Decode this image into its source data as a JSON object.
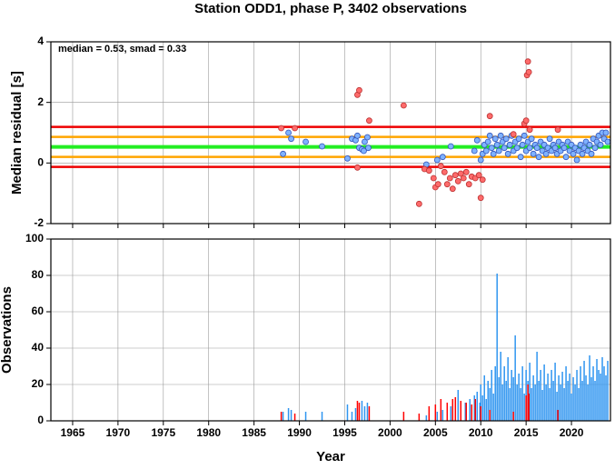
{
  "chart_data": [
    {
      "type": "scatter",
      "title": "Station ODD1, phase P, 3402 observations",
      "ylabel": "Median residual [s]",
      "annotation": "median = 0.53, smad = 0.33",
      "xlim": [
        1962.6,
        2024.3
      ],
      "xticks": [
        1965,
        1970,
        1975,
        1980,
        1985,
        1990,
        1995,
        2000,
        2005,
        2010,
        2015,
        2020
      ],
      "ylim": [
        -2,
        4
      ],
      "yticks": [
        -2,
        0,
        2,
        4
      ],
      "grid": true,
      "reference_lines": [
        {
          "value": 1.19,
          "color": "#ee0000"
        },
        {
          "value": -0.13,
          "color": "#ee0000"
        },
        {
          "value": 0.86,
          "color": "#ffa500"
        },
        {
          "value": 0.2,
          "color": "#ffa500"
        },
        {
          "value": 0.53,
          "color": "#22ee22"
        }
      ],
      "series": [
        {
          "color": "#7fb2ff",
          "edge": "#3355bb",
          "x": [
            1988.2,
            1988.8,
            1989.1,
            1990.7,
            1992.5,
            1995.3,
            1995.8,
            1996.2,
            1996.4,
            1996.6,
            1996.9,
            1997.2,
            1997.5,
            1997.1,
            1997.6,
            2004.0,
            2005.2,
            2005.8,
            2006.7,
            2009.3,
            2009.6,
            2010.0,
            2010.2,
            2010.4,
            2010.6,
            2010.8,
            2011.0,
            2011.2,
            2011.4,
            2011.6,
            2011.8,
            2012.0,
            2012.2,
            2012.4,
            2012.6,
            2012.8,
            2013.0,
            2013.2,
            2013.4,
            2013.6,
            2013.8,
            2014.0,
            2014.2,
            2014.4,
            2014.6,
            2014.8,
            2015.0,
            2015.2,
            2015.4,
            2015.6,
            2015.8,
            2016.0,
            2016.2,
            2016.4,
            2016.6,
            2016.8,
            2017.0,
            2017.2,
            2017.4,
            2017.6,
            2017.8,
            2018.0,
            2018.2,
            2018.4,
            2018.6,
            2018.8,
            2019.0,
            2019.2,
            2019.4,
            2019.6,
            2019.8,
            2020.0,
            2020.2,
            2020.4,
            2020.6,
            2020.8,
            2021.0,
            2021.2,
            2021.4,
            2021.6,
            2021.8,
            2022.0,
            2022.2,
            2022.4,
            2022.6,
            2022.8,
            2023.0,
            2023.2,
            2023.4,
            2023.6,
            2023.8,
            2024.0
          ],
          "values": [
            0.3,
            1.0,
            0.8,
            0.7,
            0.55,
            0.15,
            0.8,
            0.75,
            0.9,
            0.5,
            0.45,
            0.7,
            0.85,
            0.4,
            0.5,
            -0.05,
            0.1,
            0.2,
            0.55,
            0.4,
            0.75,
            0.1,
            0.3,
            0.6,
            0.4,
            0.7,
            0.9,
            0.5,
            0.3,
            0.8,
            0.6,
            0.4,
            0.9,
            0.7,
            0.5,
            0.8,
            0.3,
            0.6,
            0.9,
            0.4,
            0.7,
            0.5,
            0.8,
            0.2,
            0.6,
            0.9,
            0.4,
            0.7,
            0.5,
            0.8,
            0.3,
            0.6,
            0.5,
            0.2,
            0.7,
            0.4,
            0.6,
            0.3,
            0.5,
            0.8,
            0.4,
            0.6,
            0.5,
            0.3,
            0.7,
            0.4,
            0.6,
            0.5,
            0.2,
            0.7,
            0.4,
            0.6,
            0.3,
            0.5,
            0.1,
            0.4,
            0.6,
            0.3,
            0.5,
            0.7,
            0.4,
            0.6,
            0.3,
            0.8,
            0.5,
            0.7,
            0.9,
            0.6,
            1.0,
            0.8,
            1.0,
            0.7
          ]
        },
        {
          "color": "#ff6b6b",
          "edge": "#bb3333",
          "x": [
            1988.0,
            1989.5,
            1996.4,
            1996.6,
            1996.4,
            1997.7,
            2001.5,
            2003.2,
            2003.8,
            2004.3,
            2004.8,
            2005.0,
            2005.3,
            2005.6,
            2006.0,
            2006.3,
            2006.6,
            2006.9,
            2007.2,
            2007.5,
            2007.8,
            2008.1,
            2008.4,
            2008.7,
            2009.0,
            2009.4,
            2009.8,
            2010.0,
            2010.2,
            2011.0,
            2013.6,
            2014.8,
            2015.0,
            2015.1,
            2015.2,
            2015.3,
            2015.4,
            2018.5
          ],
          "values": [
            1.15,
            1.15,
            2.25,
            2.4,
            -0.15,
            1.4,
            1.9,
            -1.35,
            -0.2,
            -0.25,
            -0.5,
            -0.8,
            -0.7,
            -0.1,
            -0.3,
            -0.7,
            -0.5,
            -0.85,
            -0.4,
            -0.6,
            -0.35,
            -0.5,
            -0.3,
            -0.7,
            -0.45,
            -0.5,
            -0.4,
            -1.15,
            -0.55,
            1.55,
            0.95,
            1.3,
            1.4,
            2.9,
            3.35,
            3.0,
            1.1,
            1.1
          ]
        }
      ]
    },
    {
      "type": "bar",
      "xlabel": "Year",
      "ylabel": "Observations",
      "xlim": [
        1962.6,
        2024.3
      ],
      "xticks": [
        1965,
        1970,
        1975,
        1980,
        1985,
        1990,
        1995,
        2000,
        2005,
        2010,
        2015,
        2020
      ],
      "ylim": [
        0,
        100
      ],
      "yticks": [
        0,
        20,
        40,
        60,
        80,
        100
      ],
      "grid": true,
      "series": [
        {
          "color": "#2f95f0",
          "x": [
            1988.2,
            1988.8,
            1989.1,
            1990.7,
            1992.5,
            1995.3,
            1995.8,
            1996.2,
            1996.9,
            1997.2,
            1997.5,
            2004.0,
            2005.2,
            2005.8,
            2006.7,
            2007.5,
            2008.3,
            2008.8,
            2009.3,
            2009.6,
            2009.9,
            2010.0,
            2010.2,
            2010.4,
            2010.6,
            2010.8,
            2011.0,
            2011.2,
            2011.4,
            2011.6,
            2011.8,
            2012.0,
            2012.2,
            2012.4,
            2012.6,
            2012.8,
            2013.0,
            2013.2,
            2013.4,
            2013.6,
            2013.8,
            2014.0,
            2014.2,
            2014.4,
            2014.6,
            2014.8,
            2015.0,
            2015.2,
            2015.4,
            2015.6,
            2015.8,
            2016.0,
            2016.2,
            2016.4,
            2016.6,
            2016.8,
            2017.0,
            2017.2,
            2017.4,
            2017.6,
            2017.8,
            2018.0,
            2018.2,
            2018.4,
            2018.6,
            2018.8,
            2019.0,
            2019.2,
            2019.4,
            2019.6,
            2019.8,
            2020.0,
            2020.2,
            2020.4,
            2020.6,
            2020.8,
            2021.0,
            2021.2,
            2021.4,
            2021.6,
            2021.8,
            2022.0,
            2022.2,
            2022.4,
            2022.6,
            2022.8,
            2023.0,
            2023.2,
            2023.4,
            2023.6,
            2023.8,
            2024.0
          ],
          "values": [
            5,
            7,
            6,
            5,
            5,
            9,
            5,
            7,
            11,
            8,
            10,
            3,
            5,
            6,
            8,
            17,
            10,
            12,
            14,
            16,
            10,
            20,
            14,
            25,
            12,
            22,
            18,
            28,
            15,
            30,
            81,
            24,
            38,
            20,
            30,
            22,
            35,
            18,
            28,
            24,
            47,
            20,
            26,
            18,
            30,
            15,
            28,
            22,
            32,
            18,
            25,
            20,
            38,
            22,
            28,
            17,
            31,
            20,
            26,
            18,
            28,
            22,
            32,
            16,
            25,
            20,
            27,
            18,
            30,
            22,
            26,
            15,
            24,
            20,
            28,
            18,
            30,
            22,
            33,
            25,
            20,
            36,
            24,
            30,
            22,
            34,
            28,
            26,
            35,
            30,
            25,
            33
          ]
        },
        {
          "color": "#ff0000",
          "x": [
            1988.0,
            1989.5,
            1996.4,
            1996.6,
            1997.7,
            2001.5,
            2003.2,
            2004.3,
            2005.0,
            2005.6,
            2006.3,
            2006.9,
            2007.2,
            2007.8,
            2008.4,
            2009.0,
            2009.4,
            2010.0,
            2011.0,
            2013.6,
            2015.0,
            2015.2,
            2015.3,
            2018.5
          ],
          "values": [
            5,
            4,
            11,
            10,
            8,
            5,
            4,
            8,
            9,
            12,
            10,
            12,
            13,
            11,
            10,
            9,
            12,
            8,
            6,
            5,
            14,
            20,
            15,
            6
          ]
        }
      ]
    }
  ]
}
